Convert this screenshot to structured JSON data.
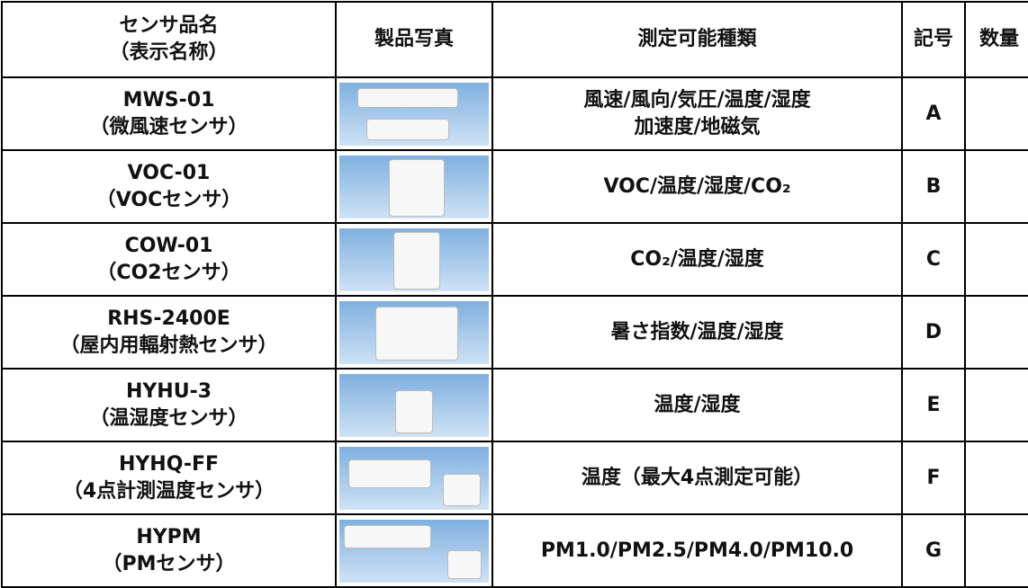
{
  "header": {
    "name": [
      "センサ品名",
      "（表示名称）"
    ],
    "photo": "製品写真",
    "types": "測定可能種類",
    "symbol": "記号",
    "quantity": "数量"
  },
  "rows": [
    {
      "model": "MWS-01",
      "display_name": "（微風速センサ）",
      "types": [
        "風速/風向/気圧/温度/湿度",
        "加速度/地磁気"
      ],
      "symbol": "A"
    },
    {
      "model": "VOC-01",
      "display_name": "（VOCセンサ）",
      "types": [
        "VOC/温度/湿度/CO₂"
      ],
      "symbol": "B"
    },
    {
      "model": "COW-01",
      "display_name": "（CO2センサ）",
      "types": [
        "CO₂/温度/湿度"
      ],
      "symbol": "C"
    },
    {
      "model": "RHS-2400E",
      "display_name": "（屋内用輻射熱センサ）",
      "types": [
        "暑さ指数/温度/湿度"
      ],
      "symbol": "D"
    },
    {
      "model": "HYHU-3",
      "display_name": "（温湿度センサ）",
      "types": [
        "温度/湿度"
      ],
      "symbol": "E"
    },
    {
      "model": "HYHQ-FF",
      "display_name": "（4点計測温度センサ）",
      "types": [
        "温度（最大4点測定可能）"
      ],
      "symbol": "F"
    },
    {
      "model": "HYPM",
      "display_name": "（PMセンサ）",
      "types": [
        "PM1.0/PM2.5/PM4.0/PM10.0"
      ],
      "symbol": "G"
    }
  ]
}
